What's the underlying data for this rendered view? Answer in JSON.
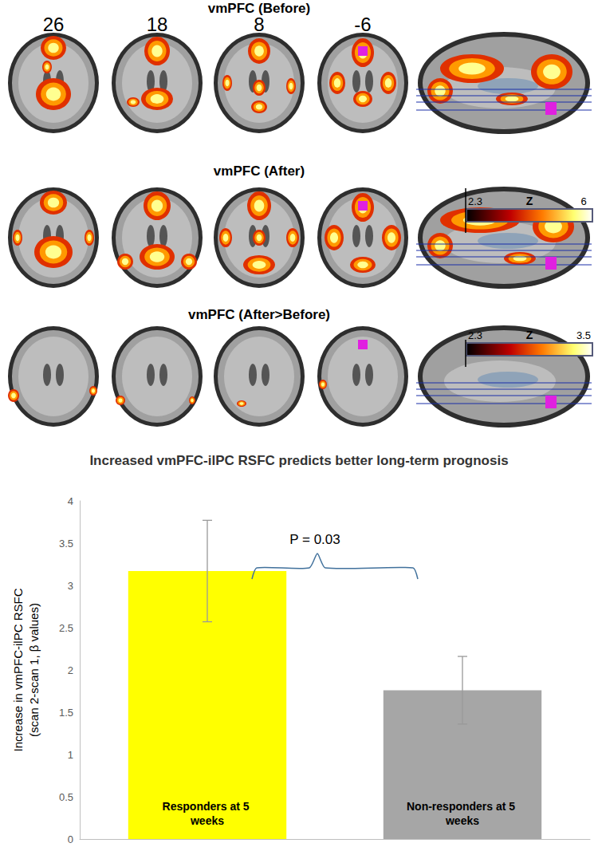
{
  "figure": {
    "panels": [
      {
        "title": "vmPFC (Before)"
      },
      {
        "title": "vmPFC (After)"
      },
      {
        "title": "vmPFC (After>Before)"
      }
    ],
    "slices": [
      26,
      18,
      8,
      -6
    ],
    "colorbars": [
      {
        "title": "Z",
        "range": [
          2.3,
          6
        ]
      },
      {
        "title": "Z",
        "range": [
          2.3,
          3.5
        ]
      }
    ]
  },
  "chart_data": {
    "type": "bar",
    "title": "Increased vmPFC-ilPC RSFC predicts better long-term prognosis",
    "y_label": "Increase in vmPFC-ilPC RSFC\n(scan 2-scan 1, β values)",
    "categories": [
      "Responders at 5 weeks",
      "Non-responders at 5 weeks"
    ],
    "values": [
      3.17,
      1.76
    ],
    "errors": [
      0.6,
      0.4
    ],
    "colors": [
      "#ffff00",
      "#a6a6a6"
    ],
    "ylim": [
      0,
      4
    ],
    "yticks": [
      0,
      0.5,
      1,
      1.5,
      2,
      2.5,
      3,
      3.5,
      4
    ],
    "grid": false,
    "tick_labels": "y",
    "annotation": "P = 0.03"
  }
}
